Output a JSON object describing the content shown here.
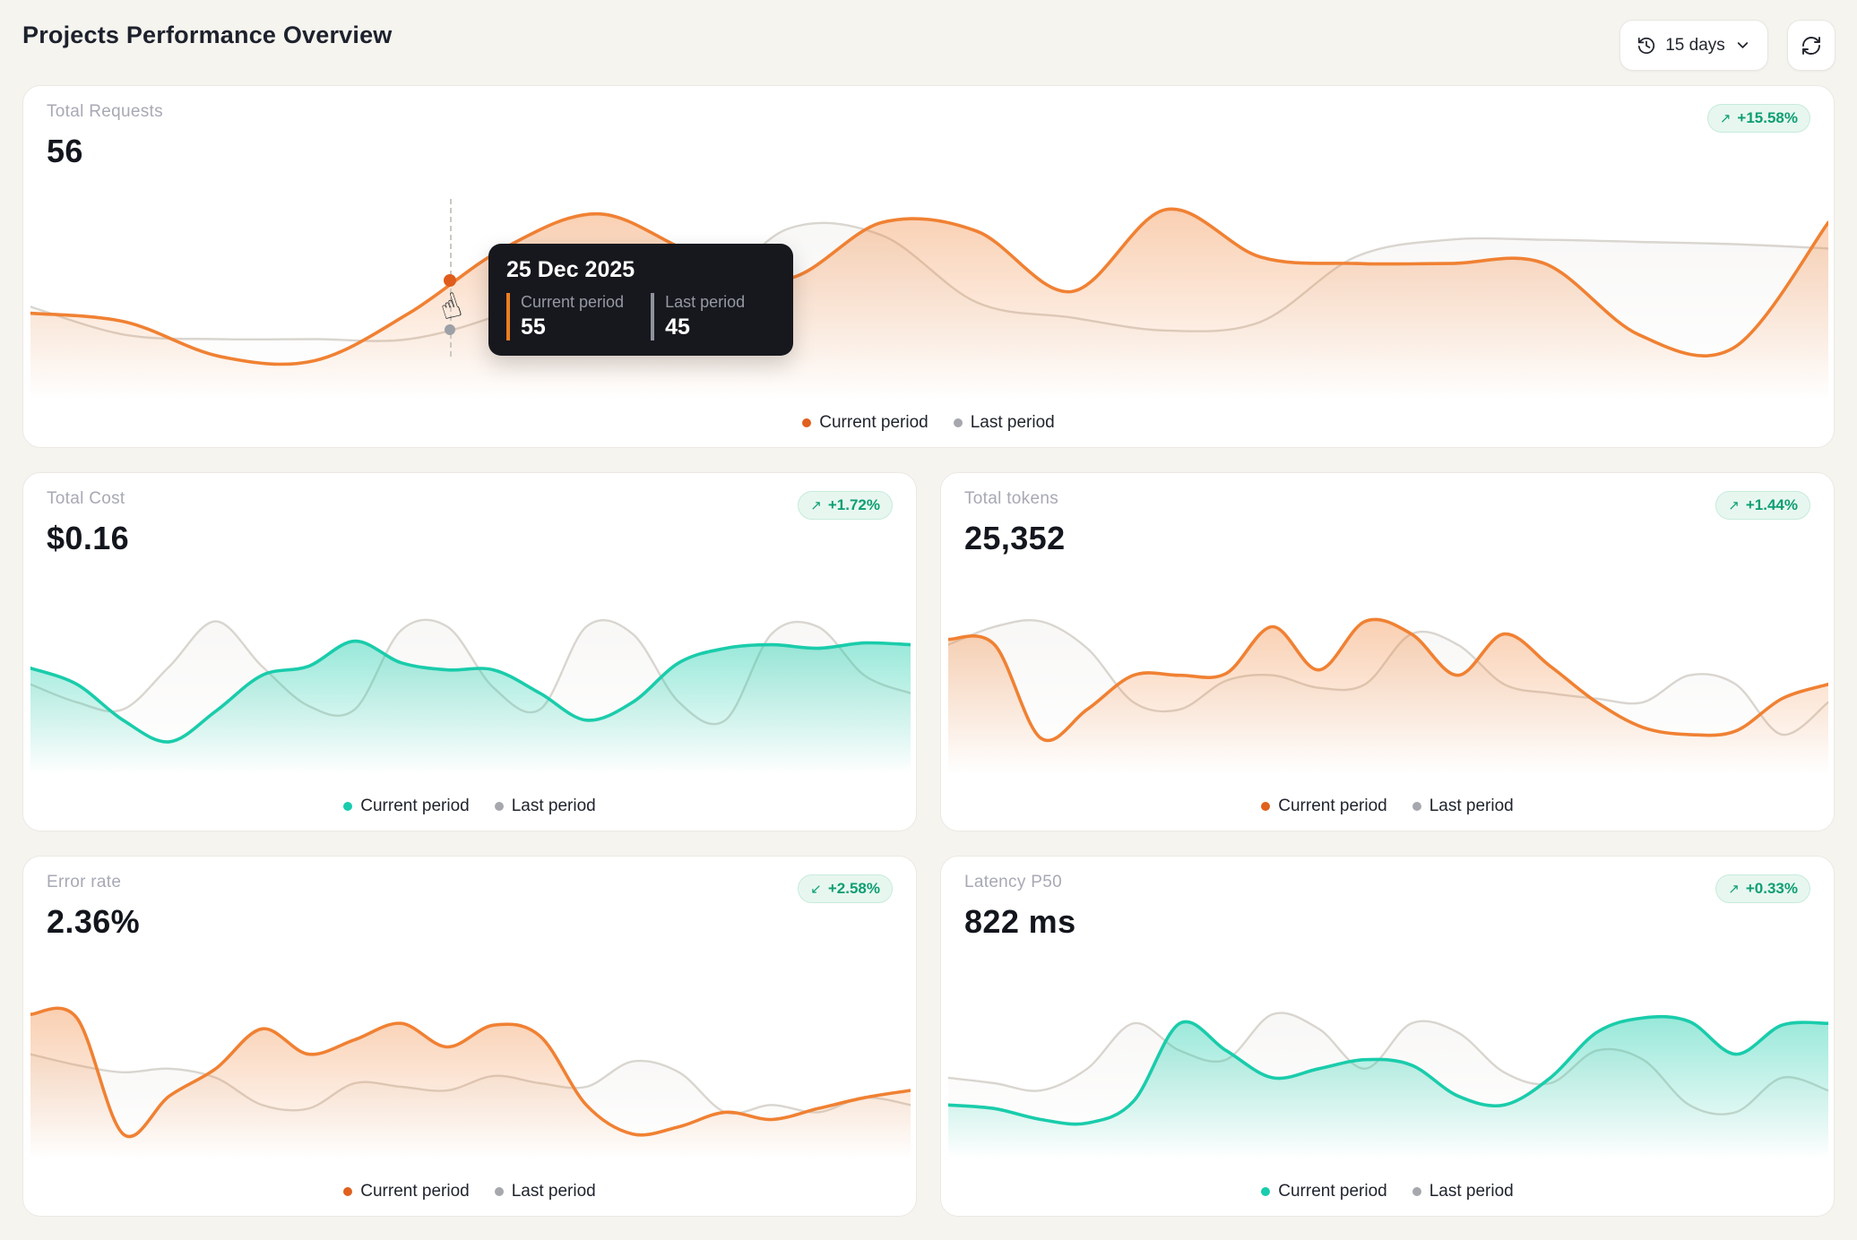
{
  "header": {
    "title": "Projects Performance Overview"
  },
  "controls": {
    "period": "15 days",
    "period_icon": "history-clock",
    "refresh_icon": "refresh-arrows"
  },
  "legend": {
    "current": "Current period",
    "last": "Last period"
  },
  "tooltip": {
    "date": "25 Dec 2025",
    "current_label": "Current period",
    "current_value": "55",
    "last_label": "Last period",
    "last_value": "45",
    "current_color": "#ee7d22",
    "last_color": "#8f929c",
    "bg": "#17181e"
  },
  "palette": {
    "page_bg": "#f5f4ef",
    "card_bg": "#ffffff",
    "card_border": "#ece9e3",
    "label_grey": "#a7a9b4",
    "value_dark": "#13161d",
    "badge_bg": "#e7f7f0",
    "badge_border": "#c7ebdb",
    "badge_text": "#0f9e73"
  },
  "cards": [
    {
      "id": "total-requests",
      "label": "Total Requests",
      "value": "56",
      "delta": "+15.58%",
      "arrow": "↗",
      "trend": "up",
      "color": "orange"
    },
    {
      "id": "total-cost",
      "label": "Total Cost",
      "value": "$0.16",
      "delta": "+1.72%",
      "arrow": "↗",
      "trend": "up",
      "color": "teal"
    },
    {
      "id": "total-tokens",
      "label": "Total tokens",
      "value": "25,352",
      "delta": "+1.44%",
      "arrow": "↗",
      "trend": "up",
      "color": "orange"
    },
    {
      "id": "error-rate",
      "label": "Error rate",
      "value": "2.36%",
      "delta": "+2.58%",
      "arrow": "↙",
      "trend": "down",
      "color": "orange"
    },
    {
      "id": "latency-p50",
      "label": "Latency P50",
      "value": "822 ms",
      "delta": "+0.33%",
      "arrow": "↗",
      "trend": "up",
      "color": "teal"
    }
  ],
  "chart_data": [
    {
      "type": "area",
      "title": "Total Requests",
      "axes": "hidden",
      "grid": false,
      "x": "15 days, daily points",
      "legend_position": "bottom-center",
      "units": "relative height 0-100 (no axis labels visible in chart)",
      "known_points": {
        "25 Dec 2025": {
          "Current period": 55,
          "Last period": 45
        }
      },
      "series": [
        {
          "name": "Current period",
          "color": "#f08133",
          "dot": "#e0601e",
          "fill_alpha": 0.38,
          "values": [
            40,
            36,
            20,
            18,
            40,
            70,
            86,
            68,
            56,
            82,
            78,
            50,
            88,
            66,
            63,
            63,
            63,
            30,
            24,
            82
          ]
        },
        {
          "name": "Last period",
          "color": "#d9d5cf",
          "dot": "#a6a8ae",
          "fill_alpha": 0.18,
          "values": [
            43,
            30,
            28,
            28,
            28,
            40,
            60,
            45,
            79,
            76,
            45,
            38,
            32,
            36,
            66,
            74,
            74,
            73,
            72,
            70
          ]
        }
      ]
    },
    {
      "type": "area",
      "title": "Total Cost",
      "axes": "hidden",
      "grid": false,
      "x": "15 days, daily points",
      "legend_position": "bottom-center",
      "units": "relative height 0-100 (no axis labels visible in chart)",
      "series": [
        {
          "name": "Current period",
          "color": "#1accab",
          "dot": "#19ccad",
          "fill_alpha": 0.45,
          "values": [
            59,
            50,
            30,
            18,
            35,
            55,
            60,
            74,
            62,
            58,
            58,
            45,
            30,
            40,
            62,
            70,
            72,
            70,
            73,
            72
          ]
        },
        {
          "name": "Last period",
          "color": "#d9d5cf",
          "dot": "#a6a8ae",
          "fill_alpha": 0.18,
          "values": [
            50,
            40,
            36,
            60,
            85,
            60,
            38,
            36,
            80,
            82,
            48,
            36,
            82,
            78,
            40,
            30,
            78,
            82,
            55,
            45
          ]
        }
      ]
    },
    {
      "type": "area",
      "title": "Total tokens",
      "axes": "hidden",
      "grid": false,
      "x": "15 days, daily points",
      "legend_position": "bottom-center",
      "units": "relative height 0-100 (no axis labels visible in chart)",
      "series": [
        {
          "name": "Current period",
          "color": "#f08133",
          "dot": "#e0601e",
          "fill_alpha": 0.38,
          "values": [
            75,
            72,
            20,
            36,
            55,
            55,
            56,
            82,
            58,
            85,
            78,
            55,
            78,
            60,
            40,
            26,
            22,
            24,
            42,
            50
          ]
        },
        {
          "name": "Last period",
          "color": "#d9d5cf",
          "dot": "#a6a8ae",
          "fill_alpha": 0.18,
          "values": [
            72,
            82,
            85,
            70,
            40,
            36,
            52,
            55,
            48,
            50,
            78,
            72,
            50,
            45,
            42,
            40,
            55,
            50,
            22,
            40
          ]
        }
      ]
    },
    {
      "type": "area",
      "title": "Error rate",
      "axes": "hidden",
      "grid": false,
      "x": "15 days, daily points",
      "legend_position": "bottom-center",
      "units": "relative height 0-100 (no axis labels visible in chart)",
      "series": [
        {
          "name": "Current period",
          "color": "#f08133",
          "dot": "#e0601e",
          "fill_alpha": 0.38,
          "values": [
            80,
            78,
            14,
            35,
            50,
            72,
            58,
            66,
            75,
            62,
            74,
            68,
            30,
            14,
            18,
            26,
            22,
            28,
            34,
            38
          ]
        },
        {
          "name": "Last period",
          "color": "#d9d5cf",
          "dot": "#a6a8ae",
          "fill_alpha": 0.18,
          "values": [
            58,
            52,
            48,
            50,
            45,
            30,
            28,
            42,
            40,
            38,
            46,
            42,
            40,
            54,
            48,
            26,
            30,
            26,
            34,
            30
          ]
        }
      ]
    },
    {
      "type": "area",
      "title": "Latency P50",
      "axes": "hidden",
      "grid": false,
      "x": "15 days, daily points",
      "legend_position": "bottom-center",
      "units": "relative height 0-100 (no axis labels visible in chart)",
      "series": [
        {
          "name": "Current period",
          "color": "#1accab",
          "dot": "#19ccad",
          "fill_alpha": 0.45,
          "values": [
            30,
            28,
            22,
            20,
            32,
            75,
            60,
            45,
            50,
            55,
            52,
            35,
            30,
            45,
            70,
            78,
            76,
            58,
            74,
            75
          ]
        },
        {
          "name": "Last period",
          "color": "#d9d5cf",
          "dot": "#a6a8ae",
          "fill_alpha": 0.18,
          "values": [
            45,
            42,
            38,
            50,
            75,
            60,
            55,
            80,
            72,
            50,
            75,
            70,
            48,
            42,
            60,
            55,
            30,
            26,
            45,
            38
          ]
        }
      ]
    }
  ]
}
